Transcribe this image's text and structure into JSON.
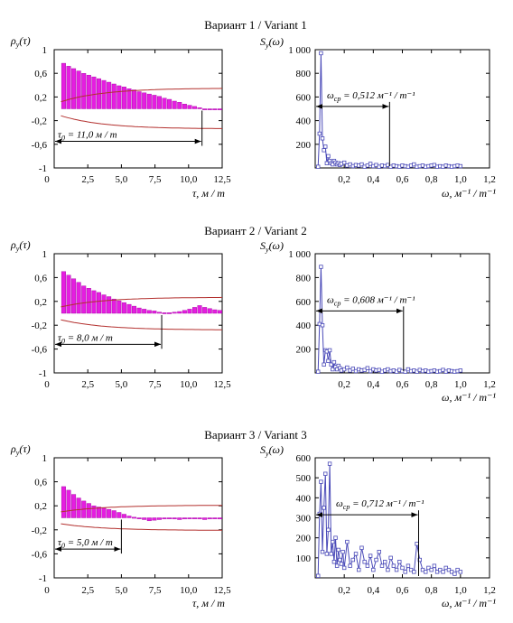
{
  "panels": [
    {
      "title": "Вариант 1 / Variant 1",
      "acf": {
        "ylabel": "ρ_y(τ)",
        "xlabel": "τ,  м / m",
        "xticks": [
          "0",
          "2,5",
          "5,0",
          "7,5",
          "10,0",
          "12,5"
        ],
        "yticks": [
          "1",
          "0,6",
          "0,2",
          "-0,2",
          "-0,6",
          "-1"
        ],
        "tau0_label": "τ_0 = 11,0 м / m",
        "tau0": 11.0,
        "values": [
          0.77,
          0.72,
          0.68,
          0.64,
          0.6,
          0.57,
          0.54,
          0.51,
          0.48,
          0.45,
          0.42,
          0.39,
          0.37,
          0.34,
          0.32,
          0.29,
          0.27,
          0.25,
          0.23,
          0.21,
          0.18,
          0.16,
          0.13,
          0.11,
          0.08,
          0.06,
          0.04,
          0.02,
          0.0,
          0.0,
          0.0,
          0.0
        ],
        "band_upper": 0.35,
        "band_lower": -0.34
      },
      "spectrum": {
        "ylabel": "S_y(ω)",
        "xlabel": "ω,  м⁻¹ / m⁻¹",
        "ylim": [
          0,
          1000
        ],
        "yticks": [
          "1 000",
          "800",
          "600",
          "400",
          "200"
        ],
        "xticks": [
          "0",
          "0,2",
          "0,4",
          "0,6",
          "0,8",
          "1,0",
          "1,2"
        ],
        "omega_label": "ω_ср = 0,512 м⁻¹ / m⁻¹",
        "omega": 0.512,
        "x": [
          0.02,
          0.03,
          0.04,
          0.05,
          0.06,
          0.07,
          0.08,
          0.09,
          0.1,
          0.11,
          0.12,
          0.13,
          0.14,
          0.15,
          0.16,
          0.17,
          0.18,
          0.2,
          0.22,
          0.24,
          0.26,
          0.28,
          0.3,
          0.32,
          0.34,
          0.36,
          0.38,
          0.4,
          0.42,
          0.44,
          0.46,
          0.48,
          0.5,
          0.52,
          0.54,
          0.56,
          0.58,
          0.6,
          0.62,
          0.64,
          0.66,
          0.68,
          0.7,
          0.72,
          0.74,
          0.76,
          0.78,
          0.8,
          0.82,
          0.84,
          0.86,
          0.88,
          0.9,
          0.92,
          0.94,
          0.96,
          0.98,
          1.0
        ],
        "y": [
          10,
          290,
          970,
          250,
          150,
          180,
          40,
          100,
          60,
          40,
          30,
          60,
          45,
          30,
          40,
          25,
          35,
          45,
          20,
          30,
          15,
          25,
          20,
          30,
          10,
          20,
          35,
          15,
          25,
          10,
          20,
          15,
          25,
          10,
          20,
          15,
          10,
          20,
          15,
          10,
          20,
          30,
          10,
          15,
          20,
          10,
          15,
          20,
          25,
          10,
          15,
          10,
          20,
          15,
          10,
          15,
          20,
          15
        ]
      }
    },
    {
      "title": "Вариант 2 / Variant 2",
      "acf": {
        "ylabel": "ρ_y(τ)",
        "xlabel": "",
        "xticks": [
          "0",
          "2,5",
          "5,0",
          "7,5",
          "10,0",
          "12,5"
        ],
        "yticks": [
          "1",
          "0,6",
          "0,2",
          "-0,2",
          "-0,6",
          "-1"
        ],
        "tau0_label": "τ_0 = 8,0 м / m",
        "tau0": 8.0,
        "values": [
          0.7,
          0.64,
          0.58,
          0.52,
          0.46,
          0.42,
          0.38,
          0.35,
          0.31,
          0.28,
          0.24,
          0.21,
          0.18,
          0.15,
          0.12,
          0.09,
          0.07,
          0.05,
          0.04,
          0.02,
          0.01,
          0.01,
          0.02,
          0.03,
          0.05,
          0.07,
          0.1,
          0.13,
          0.1,
          0.08,
          0.06,
          0.05
        ],
        "band_upper": 0.27,
        "band_lower": -0.28
      },
      "spectrum": {
        "ylabel": "S_y(ω)",
        "xlabel": "ω,  м⁻¹ / m⁻¹",
        "ylim": [
          0,
          1000
        ],
        "yticks": [
          "1 000",
          "800",
          "600",
          "400",
          "200"
        ],
        "xticks": [
          "0",
          "0,2",
          "0,4",
          "0,6",
          "0,8",
          "1,0",
          "1,2"
        ],
        "omega_label": "ω_ср = 0,608 м⁻¹ / m⁻¹",
        "omega": 0.608,
        "x": [
          0.02,
          0.03,
          0.04,
          0.05,
          0.06,
          0.07,
          0.08,
          0.09,
          0.1,
          0.11,
          0.12,
          0.13,
          0.14,
          0.15,
          0.16,
          0.17,
          0.18,
          0.2,
          0.22,
          0.24,
          0.26,
          0.28,
          0.3,
          0.32,
          0.34,
          0.36,
          0.38,
          0.4,
          0.42,
          0.44,
          0.46,
          0.48,
          0.5,
          0.52,
          0.54,
          0.56,
          0.58,
          0.6,
          0.62,
          0.64,
          0.66,
          0.68,
          0.7,
          0.72,
          0.74,
          0.76,
          0.78,
          0.8,
          0.82,
          0.84,
          0.86,
          0.88,
          0.9,
          0.92,
          0.94,
          0.96,
          0.98,
          1.0
        ],
        "y": [
          10,
          410,
          890,
          400,
          70,
          190,
          180,
          100,
          190,
          70,
          30,
          90,
          50,
          30,
          60,
          40,
          20,
          30,
          45,
          20,
          35,
          15,
          30,
          20,
          25,
          40,
          15,
          30,
          20,
          25,
          10,
          20,
          30,
          15,
          20,
          10,
          25,
          15,
          10,
          30,
          15,
          20,
          10,
          25,
          15,
          20,
          10,
          15,
          20,
          10,
          15,
          25,
          10,
          20,
          15,
          10,
          15,
          20
        ]
      }
    },
    {
      "title": "Вариант 3 / Variant 3",
      "acf": {
        "ylabel": "ρ_y(τ)",
        "xlabel": "τ,  м / m",
        "xticks": [
          "0",
          "2,5",
          "5,0",
          "7,5",
          "10,0",
          "12,5"
        ],
        "yticks": [
          "1",
          "0,6",
          "0,2",
          "-0,2",
          "-0,6",
          "-1"
        ],
        "tau0_label": "τ_0 = 5,0 м / m",
        "tau0": 5.0,
        "values": [
          0.52,
          0.46,
          0.39,
          0.33,
          0.28,
          0.24,
          0.2,
          0.18,
          0.16,
          0.14,
          0.12,
          0.09,
          0.06,
          0.03,
          0.01,
          0.0,
          -0.03,
          -0.05,
          -0.04,
          -0.03,
          -0.02,
          -0.01,
          -0.02,
          -0.03,
          -0.02,
          -0.01,
          0.0,
          -0.02,
          -0.03,
          -0.02,
          -0.01,
          -0.02
        ],
        "band_upper": 0.21,
        "band_lower": -0.21
      },
      "spectrum": {
        "ylabel": "S_y(ω)",
        "xlabel": "ω,  м⁻¹ / m⁻¹",
        "ylim": [
          0,
          600
        ],
        "yticks": [
          "600",
          "500",
          "400",
          "300",
          "200",
          "100"
        ],
        "xticks": [
          "0",
          "0,2",
          "0,4",
          "0,6",
          "0,8",
          "1,0",
          "1,2"
        ],
        "omega_label": "ω_ср = 0,712 м⁻¹ / m⁻¹",
        "omega": 0.712,
        "x": [
          0.02,
          0.03,
          0.04,
          0.05,
          0.06,
          0.07,
          0.08,
          0.09,
          0.1,
          0.11,
          0.12,
          0.13,
          0.14,
          0.15,
          0.16,
          0.17,
          0.18,
          0.19,
          0.2,
          0.22,
          0.24,
          0.26,
          0.28,
          0.3,
          0.32,
          0.34,
          0.36,
          0.38,
          0.4,
          0.42,
          0.44,
          0.46,
          0.48,
          0.5,
          0.52,
          0.54,
          0.56,
          0.58,
          0.6,
          0.62,
          0.64,
          0.66,
          0.68,
          0.7,
          0.72,
          0.74,
          0.76,
          0.78,
          0.8,
          0.82,
          0.84,
          0.86,
          0.88,
          0.9,
          0.92,
          0.94,
          0.96,
          0.98,
          1.0
        ],
        "y": [
          10,
          320,
          480,
          130,
          350,
          520,
          120,
          240,
          570,
          120,
          180,
          80,
          200,
          60,
          140,
          90,
          70,
          130,
          50,
          180,
          60,
          90,
          120,
          40,
          150,
          80,
          60,
          110,
          40,
          90,
          130,
          60,
          80,
          40,
          100,
          60,
          40,
          80,
          50,
          30,
          60,
          40,
          30,
          170,
          90,
          40,
          30,
          50,
          40,
          60,
          30,
          40,
          30,
          50,
          40,
          30,
          20,
          40,
          30
        ]
      }
    }
  ]
}
